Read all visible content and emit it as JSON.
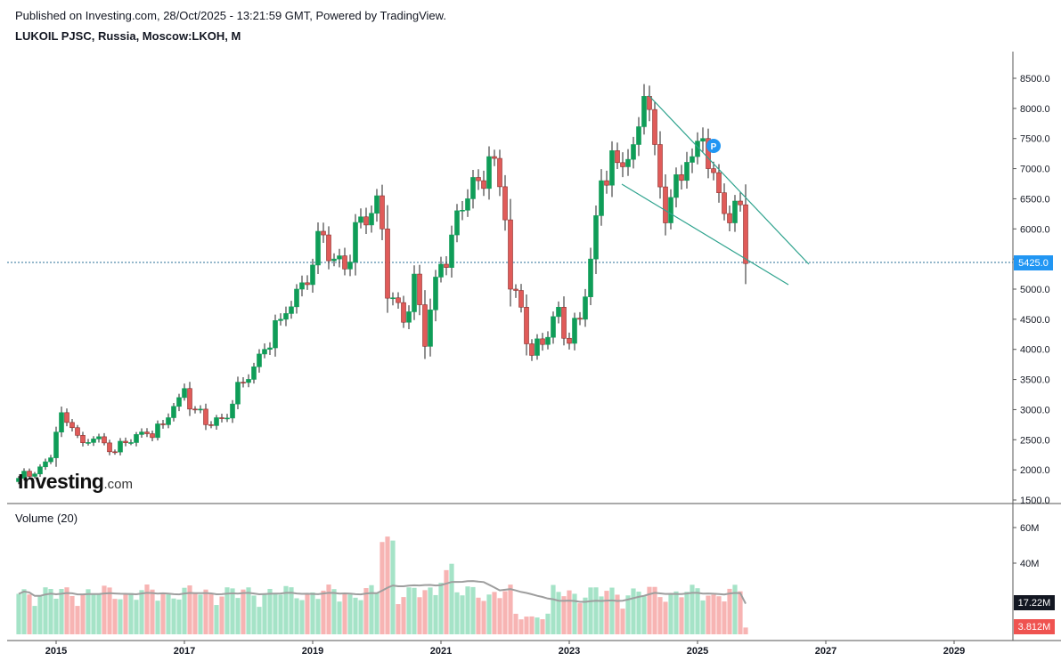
{
  "header": {
    "published": "Published on Investing.com, 28/Oct/2025 - 13:21:59 GMT, Powered by TradingView.",
    "symbol": "LUKOIL PJSC, Russia, Moscow:LKOH, M"
  },
  "watermark": {
    "brand": "Investing",
    "suffix": ".com"
  },
  "volume_panel": {
    "title": "Volume (20)"
  },
  "price_marker": {
    "label": "P"
  },
  "badges": {
    "last_price": "5425.0",
    "volume_ma": "17.22M",
    "last_volume": "3.812M"
  },
  "colors": {
    "up": "#26a69a",
    "up_body": "#0f9d58",
    "down": "#ef5350",
    "down_body": "#e05b59",
    "vol_up": "#a5e3c7",
    "vol_down": "#f7b4b3",
    "trend": "#2fa38e",
    "price_badge": "#2196f3",
    "ma_line": "#9e9e9e",
    "grid_axis": "#555555"
  },
  "chart_data": [
    {
      "type": "candlestick",
      "interval": "monthly",
      "x_tick_labels": [
        "2015",
        "2017",
        "2019",
        "2021",
        "2023",
        "2025",
        "2027",
        "2029"
      ],
      "y_tick_labels": [
        "1500.0",
        "2000.0",
        "2500.0",
        "3000.0",
        "3500.0",
        "4000.0",
        "4500.0",
        "5000.0",
        "5500.0",
        "6000.0",
        "6500.0",
        "7000.0",
        "7500.0",
        "8000.0",
        "8500.0"
      ],
      "ylim": [
        1450,
        8650
      ],
      "last_price": 5425,
      "close_anchors": [
        [
          "2014-06",
          1860
        ],
        [
          "2014-10",
          2050
        ],
        [
          "2014-12",
          2200
        ],
        [
          "2015-02",
          2950
        ],
        [
          "2015-04",
          2700
        ],
        [
          "2015-06",
          2450
        ],
        [
          "2015-09",
          2550
        ],
        [
          "2015-11",
          2300
        ],
        [
          "2016-02",
          2450
        ],
        [
          "2016-06",
          2600
        ],
        [
          "2016-09",
          2750
        ],
        [
          "2016-12",
          3200
        ],
        [
          "2017-01",
          3350
        ],
        [
          "2017-03",
          3000
        ],
        [
          "2017-05",
          2750
        ],
        [
          "2017-08",
          2850
        ],
        [
          "2017-12",
          3450
        ],
        [
          "2018-04",
          4000
        ],
        [
          "2018-07",
          4500
        ],
        [
          "2018-10",
          5000
        ],
        [
          "2019-01",
          5400
        ],
        [
          "2019-03",
          5900
        ],
        [
          "2019-05",
          5500
        ],
        [
          "2019-08",
          5450
        ],
        [
          "2019-10",
          6200
        ],
        [
          "2020-01",
          6550
        ],
        [
          "2020-02",
          6000
        ],
        [
          "2020-03",
          4850
        ],
        [
          "2020-06",
          4450
        ],
        [
          "2020-08",
          5250
        ],
        [
          "2020-10",
          4050
        ],
        [
          "2020-12",
          5200
        ],
        [
          "2021-03",
          5900
        ],
        [
          "2021-06",
          6500
        ],
        [
          "2021-08",
          6800
        ],
        [
          "2021-10",
          7200
        ],
        [
          "2021-12",
          6700
        ],
        [
          "2022-01",
          6150
        ],
        [
          "2022-02",
          5000
        ],
        [
          "2022-04",
          4700
        ],
        [
          "2022-06",
          3900
        ],
        [
          "2022-09",
          4200
        ],
        [
          "2022-11",
          4700
        ],
        [
          "2023-01",
          4100
        ],
        [
          "2023-03",
          4500
        ],
        [
          "2023-05",
          5500
        ],
        [
          "2023-07",
          6800
        ],
        [
          "2023-10",
          7100
        ],
        [
          "2024-01",
          7400
        ],
        [
          "2024-03",
          8200
        ],
        [
          "2024-05",
          7400
        ],
        [
          "2024-07",
          6100
        ],
        [
          "2024-09",
          6900
        ],
        [
          "2024-12",
          7200
        ],
        [
          "2025-02",
          7500
        ],
        [
          "2025-03",
          7000
        ],
        [
          "2025-05",
          6600
        ],
        [
          "2025-07",
          6100
        ],
        [
          "2025-09",
          6400
        ],
        [
          "2025-10",
          5425
        ]
      ],
      "volume_ylim": [
        0,
        65
      ],
      "volume_tick_labels": [
        "40M",
        "60M"
      ],
      "volume_ma": 17.22,
      "last_volume": 3.812
    }
  ]
}
